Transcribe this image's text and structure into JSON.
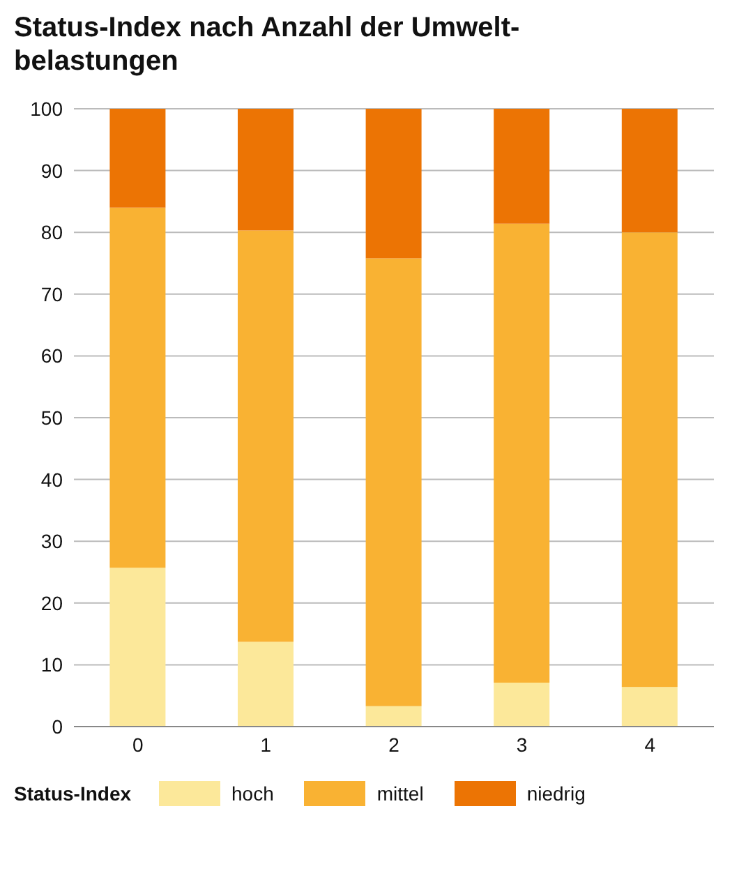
{
  "chart_data": {
    "type": "bar",
    "title": "Status-Index nach Anzahl der Umwelt-belastungen",
    "legend_title": "Status-Index",
    "categories": [
      "0",
      "1",
      "2",
      "3",
      "4"
    ],
    "stacked": true,
    "series": [
      {
        "name": "hoch",
        "color": "#fce89a",
        "values": [
          25.7,
          13.7,
          3.3,
          7.1,
          6.4
        ]
      },
      {
        "name": "mittel",
        "color": "#f9b233",
        "values": [
          58.3,
          66.6,
          72.5,
          74.3,
          73.6
        ]
      },
      {
        "name": "niedrig",
        "color": "#ec7404",
        "values": [
          16,
          19.7,
          24.2,
          18.6,
          20
        ]
      }
    ],
    "ylim": [
      0,
      100
    ],
    "yticks": [
      0,
      10,
      20,
      30,
      40,
      50,
      60,
      70,
      80,
      90,
      100
    ],
    "grid": "y",
    "legend": "bottom"
  }
}
